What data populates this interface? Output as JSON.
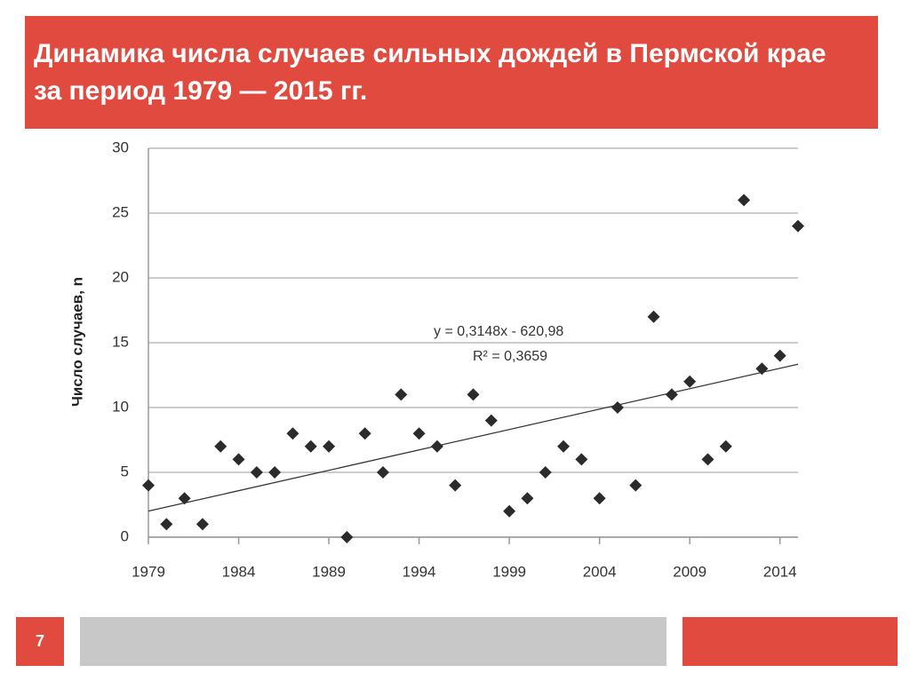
{
  "title": "Динамика числа случаев сильных дождей в Пермской крае за период 1979 — 2015 гг.",
  "slide_number": "7",
  "chart_data": {
    "type": "scatter",
    "y_label": "Число случаев, n",
    "x": [
      1979,
      1980,
      1981,
      1982,
      1983,
      1984,
      1985,
      1986,
      1987,
      1988,
      1989,
      1990,
      1991,
      1992,
      1993,
      1994,
      1995,
      1996,
      1997,
      1998,
      1999,
      2000,
      2001,
      2002,
      2003,
      2004,
      2005,
      2006,
      2007,
      2008,
      2009,
      2010,
      2011,
      2012,
      2013,
      2014,
      2015
    ],
    "values": [
      4,
      1,
      3,
      1,
      7,
      6,
      5,
      5,
      8,
      7,
      7,
      0,
      8,
      5,
      11,
      8,
      7,
      4,
      11,
      9,
      2,
      3,
      5,
      7,
      6,
      3,
      10,
      4,
      17,
      11,
      12,
      6,
      7,
      26,
      13,
      14,
      24
    ],
    "color": "#2b2b2b",
    "xlim": [
      1979,
      2015
    ],
    "xticks": [
      1979,
      1984,
      1989,
      1994,
      1999,
      2004,
      2009,
      2014
    ],
    "ylim": [
      0,
      30
    ],
    "yticks": [
      0,
      5,
      10,
      15,
      20,
      25,
      30
    ],
    "grid": true,
    "trendline": {
      "slope": 0.3148,
      "intercept": -620.98,
      "label": "y = 0,3148x - 620,98",
      "r2_label": "R² = 0,3659"
    }
  }
}
